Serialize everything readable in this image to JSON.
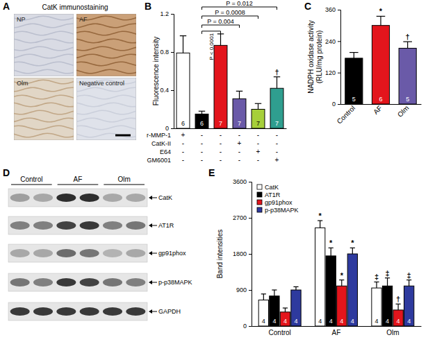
{
  "images": {
    "A": {
      "title": "A",
      "caption": "CatK immunostaining",
      "tiles": [
        "NP",
        "AF",
        "Olm",
        "Negative control"
      ]
    },
    "D": {
      "title": "D",
      "groups": [
        "Control",
        "AF",
        "Olm"
      ],
      "bands": [
        "CatK",
        "AT1R",
        "gp91phox",
        "p-p38MAPK",
        "GAPDH"
      ]
    }
  },
  "chart_data": [
    {
      "type": "bar",
      "title": "B",
      "ylabel": "Fluorescence intensity",
      "categories": [
        null,
        null,
        null,
        null,
        null,
        null
      ],
      "values": [
        0.79,
        0.15,
        0.87,
        0.31,
        0.2,
        0.42
      ],
      "errors": [
        0.18,
        0.03,
        0.12,
        0.08,
        0.06,
        0.12
      ],
      "n": [
        6,
        6,
        7,
        7,
        7,
        7
      ],
      "colors": [
        "#ffffff",
        "#000000",
        "#e3151c",
        "#6a5aa8",
        "#a6cf3a",
        "#2f9e8f"
      ],
      "significance": [
        null,
        null,
        null,
        null,
        null,
        "†"
      ],
      "comparisons": [
        {
          "from": 1,
          "to": 5,
          "label": "P = 0.012"
        },
        {
          "from": 1,
          "to": 4,
          "label": "P = 0.0008"
        },
        {
          "from": 1,
          "to": 3,
          "label": "P = 0.004"
        },
        {
          "from": 1,
          "to": 2,
          "label": "P < 0.0001"
        }
      ],
      "treatments": [
        {
          "name": "r-MMP-1",
          "signs": [
            "+",
            "-",
            "-",
            "-",
            "-",
            "-"
          ]
        },
        {
          "name": "CatK-II",
          "signs": [
            "-",
            "-",
            "-",
            "+",
            "-",
            "-"
          ]
        },
        {
          "name": "E64",
          "signs": [
            "-",
            "-",
            "-",
            "-",
            "+",
            "-"
          ]
        },
        {
          "name": "GM6001",
          "signs": [
            "-",
            "-",
            "-",
            "-",
            "-",
            "+"
          ]
        }
      ],
      "ylim": [
        0,
        1.2
      ],
      "yticks": [
        0,
        0.4,
        0.8,
        1.2
      ]
    },
    {
      "type": "bar",
      "title": "C",
      "ylabel": [
        "NADPH oxidase activity",
        "(RLU/mg protein)"
      ],
      "categories": [
        "Control",
        "AF",
        "Olm"
      ],
      "values": [
        175,
        300,
        213
      ],
      "errors": [
        22,
        35,
        25
      ],
      "n": [
        5,
        6,
        5
      ],
      "colors": [
        "#000000",
        "#e3151c",
        "#6a5aa8"
      ],
      "significance": [
        null,
        "*",
        "†"
      ],
      "ylim": [
        0,
        360
      ],
      "yticks": [
        0,
        120,
        240,
        360
      ]
    },
    {
      "type": "bar",
      "title": "E",
      "ylabel": "Band intensities",
      "categories": [
        "Control",
        "AF",
        "Olm"
      ],
      "series": [
        {
          "name": "CatK",
          "color": "#ffffff",
          "values": [
            650,
            2450,
            950
          ],
          "errors": [
            150,
            180,
            150
          ],
          "n": [
            4,
            4,
            4
          ],
          "significance": [
            null,
            "*",
            "‡"
          ]
        },
        {
          "name": "AT1R",
          "color": "#000000",
          "values": [
            750,
            1750,
            1000
          ],
          "errors": [
            150,
            200,
            200
          ],
          "n": [
            4,
            4,
            4
          ],
          "significance": [
            null,
            "*",
            "‡"
          ]
        },
        {
          "name": "gp91phox",
          "color": "#e3151c",
          "values": [
            350,
            1000,
            400
          ],
          "errors": [
            100,
            150,
            150
          ],
          "n": [
            4,
            4,
            4
          ],
          "significance": [
            null,
            "*",
            "†"
          ]
        },
        {
          "name": "p-p38MAPK",
          "color": "#2e3a9e",
          "values": [
            900,
            1800,
            1000
          ],
          "errors": [
            80,
            150,
            150
          ],
          "n": [
            4,
            4,
            4
          ],
          "significance": [
            null,
            "*",
            "‡"
          ]
        }
      ],
      "legend": "upper left",
      "ylim": [
        0,
        3600
      ],
      "yticks": [
        0,
        900,
        1800,
        2700,
        3600
      ]
    }
  ]
}
